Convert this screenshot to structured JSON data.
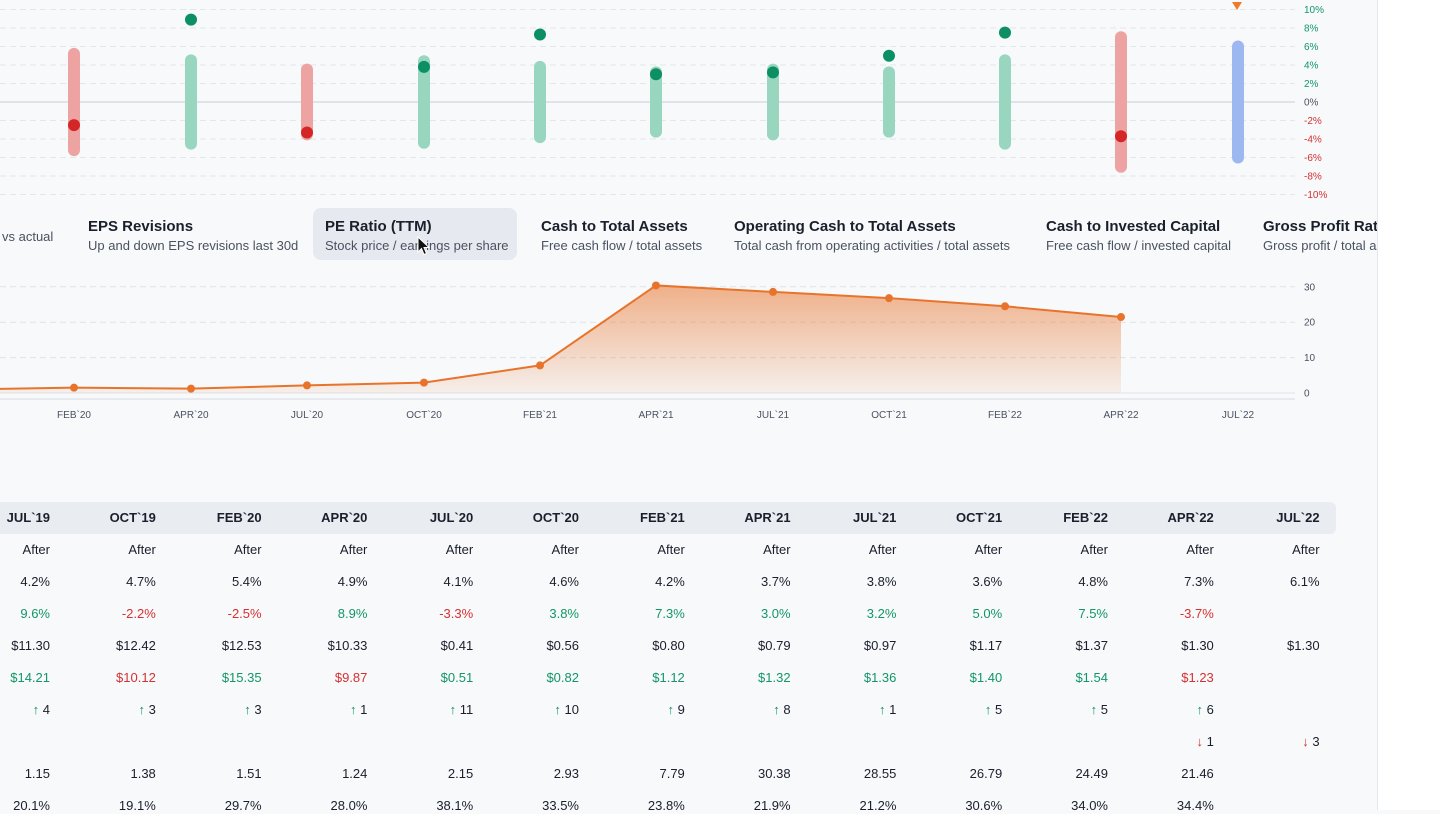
{
  "revision_chart": {
    "y_ticks": [
      "10%",
      "8%",
      "6%",
      "4%",
      "2%",
      "0%",
      "-2%",
      "-4%",
      "-6%",
      "-8%",
      "-10%"
    ],
    "bars": [
      {
        "low": -5.2,
        "high": 5.2,
        "dot": -2.5,
        "color": "red"
      },
      {
        "low": -4.5,
        "high": 4.5,
        "dot": 8.9,
        "color": "green"
      },
      {
        "low": -3.5,
        "high": 3.5,
        "dot": -3.3,
        "color": "red"
      },
      {
        "low": -4.4,
        "high": 4.4,
        "dot": 3.8,
        "color": "green"
      },
      {
        "low": -3.8,
        "high": 3.8,
        "dot": 7.3,
        "color": "green"
      },
      {
        "low": -3.2,
        "high": 3.2,
        "dot": 3.0,
        "color": "green"
      },
      {
        "low": -3.5,
        "high": 3.5,
        "dot": 3.2,
        "color": "green"
      },
      {
        "low": -3.2,
        "high": 3.2,
        "dot": 5.0,
        "color": "green"
      },
      {
        "low": -4.5,
        "high": 4.5,
        "dot": 7.5,
        "color": "green"
      },
      {
        "low": -7.0,
        "high": 7.0,
        "dot": -3.7,
        "color": "red"
      },
      {
        "low": -6.0,
        "high": 6.0,
        "dot": null,
        "color": "blue"
      }
    ],
    "colors": {
      "green_bar": "#98d6c0",
      "green_dot": "#0c8f63",
      "red_bar": "#eea3a3",
      "red_dot": "#d42626",
      "blue_bar": "#9db7f0",
      "marker": "#f07a2a",
      "pos_tick": "#139664",
      "neg_tick": "#d63030",
      "zero_tick": "#4a5160"
    }
  },
  "metric_tabs": [
    {
      "title": "",
      "desc": "vs actual"
    },
    {
      "title": "EPS Revisions",
      "desc": "Up and down EPS revisions last 30d"
    },
    {
      "title": "PE Ratio (TTM)",
      "desc": "Stock price / earnings per share",
      "active": true
    },
    {
      "title": "Cash to Total Assets",
      "desc": "Free cash flow / total assets"
    },
    {
      "title": "Operating Cash to Total Assets",
      "desc": "Total cash from operating activities / total assets"
    },
    {
      "title": "Cash to Invested Capital",
      "desc": "Free cash flow / invested capital"
    },
    {
      "title": "Gross Profit Ratio",
      "desc": "Gross profit / total assets"
    }
  ],
  "chart_data": {
    "type": "area",
    "x": [
      "",
      "FEB`20",
      "APR`20",
      "JUL`20",
      "OCT`20",
      "FEB`21",
      "APR`21",
      "JUL`21",
      "OCT`21",
      "FEB`22",
      "APR`22"
    ],
    "values": [
      1.15,
      1.51,
      1.24,
      2.15,
      2.93,
      7.79,
      30.38,
      28.55,
      26.79,
      24.49,
      21.46
    ],
    "x_ticks": [
      "FEB`20",
      "APR`20",
      "JUL`20",
      "OCT`20",
      "FEB`21",
      "APR`21",
      "JUL`21",
      "OCT`21",
      "FEB`22",
      "APR`22",
      "JUL`22"
    ],
    "y_ticks": [
      "30",
      "20",
      "10",
      "0"
    ],
    "ylim": [
      0,
      30
    ],
    "color": "#e8742c"
  },
  "table": {
    "columns": [
      "JUL`19",
      "OCT`19",
      "FEB`20",
      "APR`20",
      "JUL`20",
      "OCT`20",
      "FEB`21",
      "APR`21",
      "JUL`21",
      "OCT`21",
      "FEB`22",
      "APR`22",
      "JUL`22"
    ],
    "rows": [
      {
        "cells": [
          "After",
          "After",
          "After",
          "After",
          "After",
          "After",
          "After",
          "After",
          "After",
          "After",
          "After",
          "After",
          "After"
        ]
      },
      {
        "cells": [
          "4.2%",
          "4.7%",
          "5.4%",
          "4.9%",
          "4.1%",
          "4.6%",
          "4.2%",
          "3.7%",
          "3.8%",
          "3.6%",
          "4.8%",
          "7.3%",
          "6.1%"
        ]
      },
      {
        "cells": [
          "9.6%",
          "-2.2%",
          "-2.5%",
          "8.9%",
          "-3.3%",
          "3.8%",
          "7.3%",
          "3.0%",
          "3.2%",
          "5.0%",
          "7.5%",
          "-3.7%",
          ""
        ],
        "tone": [
          "pos",
          "neg",
          "neg",
          "pos",
          "neg",
          "pos",
          "pos",
          "pos",
          "pos",
          "pos",
          "pos",
          "neg",
          ""
        ]
      },
      {
        "cells": [
          "$11.30",
          "$12.42",
          "$12.53",
          "$10.33",
          "$0.41",
          "$0.56",
          "$0.80",
          "$0.79",
          "$0.97",
          "$1.17",
          "$1.37",
          "$1.30",
          "$1.30"
        ]
      },
      {
        "cells": [
          "$14.21",
          "$10.12",
          "$15.35",
          "$9.87",
          "$0.51",
          "$0.82",
          "$1.12",
          "$1.32",
          "$1.36",
          "$1.40",
          "$1.54",
          "$1.23",
          ""
        ],
        "tone": [
          "pos",
          "neg",
          "pos",
          "neg",
          "pos",
          "pos",
          "pos",
          "pos",
          "pos",
          "pos",
          "pos",
          "neg",
          ""
        ]
      },
      {
        "cells": [
          "4",
          "3",
          "3",
          "1",
          "11",
          "10",
          "9",
          "8",
          "1",
          "5",
          "5",
          "6",
          ""
        ],
        "arrow": "up"
      },
      {
        "cells": [
          "",
          "",
          "",
          "",
          "",
          "",
          "",
          "",
          "",
          "",
          "",
          "1",
          "3"
        ],
        "arrow": "down"
      },
      {
        "cells": [
          "1.15",
          "1.38",
          "1.51",
          "1.24",
          "2.15",
          "2.93",
          "7.79",
          "30.38",
          "28.55",
          "26.79",
          "24.49",
          "21.46",
          ""
        ]
      },
      {
        "cells": [
          "20.1%",
          "19.1%",
          "29.7%",
          "28.0%",
          "38.1%",
          "33.5%",
          "23.8%",
          "21.9%",
          "21.2%",
          "30.6%",
          "34.0%",
          "34.4%",
          ""
        ]
      }
    ]
  }
}
